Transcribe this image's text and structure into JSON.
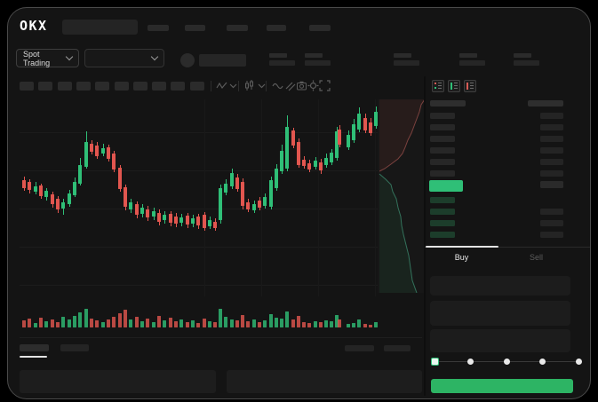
{
  "brand": {
    "logo_text": "OKX"
  },
  "header": {
    "nav_skeleton_count": 5
  },
  "subheader": {
    "market_selector_label": "Spot Trading",
    "stat_group_count": 5
  },
  "toolbar": {
    "timeframe_skeleton_count": 10,
    "icons": [
      "indicator-zigzag",
      "dropdown-chevron",
      "candle-style",
      "dropdown-chevron",
      "indicators-wave",
      "compare-lines",
      "camera-snapshot",
      "settings-gear",
      "fullscreen-expand"
    ]
  },
  "orderbook": {
    "view_icons": [
      "book-both-sides",
      "book-buy-side",
      "book-sell-side"
    ],
    "ask_row_count": 6,
    "bid_row_count": 4,
    "bid_right_row_count": 3
  },
  "trade_panel": {
    "buy_tab_label": "Buy",
    "sell_tab_label": "Sell",
    "field_count": 3,
    "slider": {
      "stops": 5,
      "active_index": 0
    }
  },
  "colors": {
    "up_green": "#2fbf77",
    "down_red": "#e2564f",
    "buy_button_green": "#2db464",
    "bid_row_green_tint": "#1c3d2b",
    "skeleton_gray": "#292929"
  },
  "chart_data": [
    {
      "type": "candlestick",
      "title": "price chart (skeleton UI, no axis labels visible)",
      "units": "pixels from chart top-left; candle = [x, dir, wickTop, bodyTop, bodyBottom, wickBottom]",
      "candles": [
        [
          3,
          "r",
          87,
          91,
          100,
          103
        ],
        [
          9,
          "r",
          90,
          93,
          102,
          106
        ],
        [
          16,
          "g",
          93,
          98,
          104,
          107
        ],
        [
          22,
          "r",
          95,
          97,
          109,
          112
        ],
        [
          28,
          "g",
          100,
          103,
          110,
          114
        ],
        [
          35,
          "r",
          104,
          107,
          118,
          122
        ],
        [
          41,
          "r",
          109,
          112,
          124,
          128
        ],
        [
          47,
          "g",
          112,
          116,
          123,
          130
        ],
        [
          54,
          "g",
          102,
          106,
          118,
          121
        ],
        [
          60,
          "g",
          88,
          93,
          108,
          110
        ],
        [
          66,
          "g",
          66,
          74,
          95,
          97
        ],
        [
          73,
          "g",
          36,
          48,
          76,
          78
        ],
        [
          79,
          "r",
          46,
          50,
          59,
          62
        ],
        [
          85,
          "r",
          48,
          52,
          64,
          67
        ],
        [
          92,
          "g",
          50,
          55,
          61,
          64
        ],
        [
          98,
          "r",
          51,
          54,
          67,
          70
        ],
        [
          104,
          "r",
          58,
          61,
          79,
          82
        ],
        [
          111,
          "r",
          74,
          77,
          101,
          104
        ],
        [
          117,
          "r",
          96,
          99,
          121,
          125
        ],
        [
          123,
          "g",
          112,
          116,
          124,
          128
        ],
        [
          130,
          "r",
          115,
          118,
          130,
          134
        ],
        [
          136,
          "g",
          118,
          122,
          129,
          133
        ],
        [
          142,
          "r",
          120,
          124,
          133,
          137
        ],
        [
          149,
          "g",
          122,
          126,
          132,
          136
        ],
        [
          155,
          "r",
          124,
          128,
          138,
          142
        ],
        [
          161,
          "g",
          126,
          130,
          136,
          140
        ],
        [
          168,
          "r",
          126,
          129,
          139,
          143
        ],
        [
          174,
          "r",
          128,
          132,
          140,
          144
        ],
        [
          180,
          "g",
          129,
          133,
          139,
          143
        ],
        [
          187,
          "r",
          128,
          131,
          141,
          145
        ],
        [
          193,
          "g",
          130,
          134,
          140,
          144
        ],
        [
          199,
          "r",
          129,
          132,
          142,
          146
        ],
        [
          206,
          "r",
          127,
          130,
          145,
          148
        ],
        [
          212,
          "g",
          132,
          136,
          143,
          146
        ],
        [
          218,
          "r",
          134,
          138,
          145,
          148
        ],
        [
          224,
          "g",
          96,
          100,
          136,
          140
        ],
        [
          230,
          "g",
          90,
          95,
          105,
          108
        ],
        [
          237,
          "g",
          78,
          83,
          98,
          101
        ],
        [
          243,
          "r",
          84,
          88,
          101,
          104
        ],
        [
          249,
          "r",
          89,
          93,
          120,
          124
        ],
        [
          255,
          "r",
          112,
          116,
          124,
          127
        ],
        [
          262,
          "g",
          114,
          118,
          125,
          128
        ],
        [
          268,
          "r",
          110,
          114,
          122,
          125
        ],
        [
          274,
          "g",
          106,
          110,
          120,
          123
        ],
        [
          281,
          "g",
          87,
          91,
          121,
          124
        ],
        [
          287,
          "g",
          73,
          78,
          100,
          103
        ],
        [
          293,
          "g",
          51,
          58,
          81,
          84
        ],
        [
          299,
          "g",
          18,
          31,
          78,
          81
        ],
        [
          306,
          "r",
          32,
          35,
          52,
          55
        ],
        [
          312,
          "r",
          44,
          48,
          74,
          77
        ],
        [
          318,
          "r",
          64,
          68,
          75,
          78
        ],
        [
          324,
          "r",
          68,
          72,
          79,
          82
        ],
        [
          331,
          "g",
          65,
          69,
          76,
          79
        ],
        [
          337,
          "r",
          67,
          71,
          80,
          84
        ],
        [
          343,
          "g",
          61,
          66,
          74,
          77
        ],
        [
          349,
          "g",
          56,
          60,
          71,
          74
        ],
        [
          355,
          "g",
          31,
          36,
          66,
          69
        ],
        [
          358,
          "r",
          29,
          34,
          51,
          54
        ],
        [
          368,
          "g",
          35,
          40,
          54,
          57
        ],
        [
          374,
          "g",
          22,
          28,
          46,
          49
        ],
        [
          380,
          "g",
          9,
          16,
          34,
          37
        ],
        [
          387,
          "r",
          16,
          21,
          35,
          38
        ],
        [
          393,
          "r",
          21,
          26,
          38,
          41
        ],
        [
          399,
          "g",
          8,
          14,
          30,
          33
        ]
      ],
      "gridlines_h": [
        37,
        80,
        123,
        166,
        209
      ],
      "gridlines_v": [
        208,
        272,
        336,
        400
      ]
    },
    {
      "type": "bar",
      "title": "volume (colors follow candles)",
      "values": [
        8,
        10,
        5,
        11,
        7,
        9,
        6,
        12,
        9,
        13,
        17,
        21,
        10,
        8,
        6,
        9,
        12,
        16,
        20,
        9,
        12,
        7,
        10,
        6,
        13,
        8,
        11,
        7,
        9,
        6,
        8,
        5,
        10,
        7,
        6,
        21,
        12,
        9,
        8,
        14,
        7,
        9,
        6,
        8,
        15,
        11,
        10,
        18,
        9,
        13,
        6,
        5,
        7,
        6,
        8,
        7,
        14,
        9,
        4,
        5,
        9,
        4,
        3,
        6
      ]
    },
    {
      "type": "area",
      "title": "depth overlay (asks top / bids bottom)",
      "asks_line": [
        [
          53,
          0
        ],
        [
          49,
          6
        ],
        [
          47,
          14
        ],
        [
          44,
          22
        ],
        [
          41,
          30
        ],
        [
          38,
          38
        ],
        [
          34,
          46
        ],
        [
          31,
          54
        ],
        [
          28,
          61
        ],
        [
          23,
          67
        ],
        [
          15,
          73
        ],
        [
          8,
          78
        ],
        [
          2,
          81
        ]
      ],
      "bids_line": [
        [
          2,
          84
        ],
        [
          9,
          90
        ],
        [
          15,
          96
        ],
        [
          17,
          104
        ],
        [
          21,
          112
        ],
        [
          23,
          122
        ],
        [
          26,
          132
        ],
        [
          27,
          142
        ],
        [
          29,
          152
        ],
        [
          32,
          164
        ],
        [
          35,
          176
        ],
        [
          37,
          190
        ],
        [
          39,
          204
        ],
        [
          44,
          218
        ]
      ]
    }
  ]
}
